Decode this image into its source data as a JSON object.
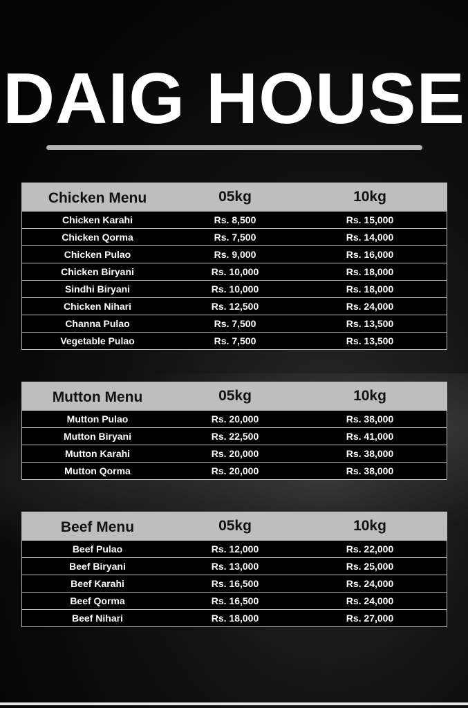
{
  "title": "DAIG HOUSE",
  "menus": [
    {
      "name": "Chicken Menu",
      "col1": "05kg",
      "col2": "10kg",
      "items": [
        {
          "dish": "Chicken Karahi",
          "p5": "Rs. 8,500",
          "p10": "Rs. 15,000"
        },
        {
          "dish": "Chicken Qorma",
          "p5": "Rs. 7,500",
          "p10": "Rs. 14,000"
        },
        {
          "dish": "Chicken Pulao",
          "p5": "Rs. 9,000",
          "p10": "Rs. 16,000"
        },
        {
          "dish": "Chicken Biryani",
          "p5": "Rs. 10,000",
          "p10": "Rs. 18,000"
        },
        {
          "dish": "Sindhi Biryani",
          "p5": "Rs. 10,000",
          "p10": "Rs. 18,000"
        },
        {
          "dish": "Chicken Nihari",
          "p5": "Rs. 12,500",
          "p10": "Rs. 24,000"
        },
        {
          "dish": "Channa Pulao",
          "p5": "Rs. 7,500",
          "p10": "Rs. 13,500"
        },
        {
          "dish": "Vegetable Pulao",
          "p5": "Rs. 7,500",
          "p10": "Rs. 13,500"
        }
      ]
    },
    {
      "name": "Mutton Menu",
      "col1": "05kg",
      "col2": "10kg",
      "items": [
        {
          "dish": "Mutton Pulao",
          "p5": "Rs. 20,000",
          "p10": "Rs. 38,000"
        },
        {
          "dish": "Mutton Biryani",
          "p5": "Rs. 22,500",
          "p10": "Rs. 41,000"
        },
        {
          "dish": "Mutton Karahi",
          "p5": "Rs. 20,000",
          "p10": "Rs. 38,000"
        },
        {
          "dish": "Mutton Qorma",
          "p5": "Rs. 20,000",
          "p10": "Rs. 38,000"
        }
      ]
    },
    {
      "name": "Beef Menu",
      "col1": "05kg",
      "col2": "10kg",
      "items": [
        {
          "dish": "Beef Pulao",
          "p5": "Rs. 12,000",
          "p10": "Rs. 22,000"
        },
        {
          "dish": "Beef Biryani",
          "p5": "Rs. 13,000",
          "p10": "Rs. 25,000"
        },
        {
          "dish": "Beef Karahi",
          "p5": "Rs. 16,500",
          "p10": "Rs. 24,000"
        },
        {
          "dish": "Beef Qorma",
          "p5": "Rs. 16,500",
          "p10": "Rs. 24,000"
        },
        {
          "dish": "Beef Nihari",
          "p5": "Rs. 18,000",
          "p10": "Rs. 27,000"
        }
      ]
    }
  ]
}
